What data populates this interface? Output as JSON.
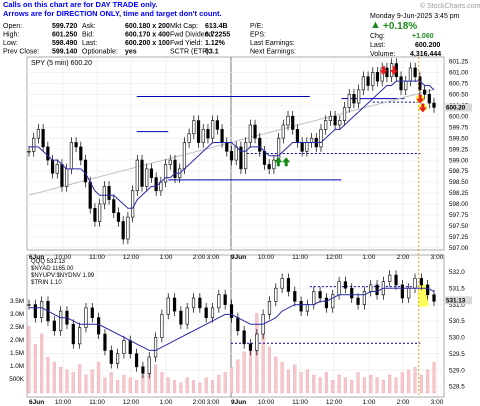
{
  "annotation": {
    "line1": "Calls on this chart are for DAY TRADE only.",
    "line2": "Arrows are for DIRECTION ONLY, time and target don't count."
  },
  "header": {
    "datetime": "Monday  9-Jun-2025  3:45 pm",
    "watermark": "© StockCharts.com",
    "pct_change": "+0.18%",
    "fields": [
      {
        "label": "Open:",
        "value": "599.720"
      },
      {
        "label": "Ask:",
        "value": "600.180 x 200"
      },
      {
        "label": "Mkt Cap:",
        "value": "613.4B"
      },
      {
        "label": "P/E:",
        "value": ""
      },
      {
        "label": "High:",
        "value": "601.250"
      },
      {
        "label": "Bid:",
        "value": "600.170 x 400"
      },
      {
        "label": "Fwd Dividend:",
        "value": "6.72255"
      },
      {
        "label": "EPS:",
        "value": ""
      },
      {
        "label": "Low:",
        "value": "598.490"
      },
      {
        "label": "Last:",
        "value": "600.200 x 100"
      },
      {
        "label": "Fwd Yield:",
        "value": "1.12%"
      },
      {
        "label": "Last Earnings:",
        "value": ""
      },
      {
        "label": "Prev Close:",
        "value": "599.140"
      },
      {
        "label": "Optionable:",
        "value": "yes"
      },
      {
        "label": "SCTR (ETF):",
        "value": "63.1"
      },
      {
        "label": "Next Earnings:",
        "value": ""
      }
    ],
    "right_labels": {
      "chg": "Chg:",
      "last": "Last:",
      "volume": "Volume:"
    },
    "right_values": {
      "chg": "+1.060",
      "last": "600.200",
      "volume": "4,316,444"
    }
  },
  "colors": {
    "accent": "#0000b0",
    "price_line": "#000000",
    "ma_line": "#2a2aa8",
    "ma_slow": "#bfbfbf",
    "up_arrow": "#138a13",
    "down_arrow": "#e81c1c",
    "highlight": "#ffff33",
    "dotted_vline": "#f0a030",
    "bg": "#ffffff"
  },
  "chart_data": [
    {
      "type": "line",
      "title": "SPY (5 min) 600.20",
      "x_ticks": [
        "6Jun",
        "10:00",
        "11:00",
        "12:00",
        "1:00",
        "2:00",
        "3:00",
        "9Jun",
        "10:00",
        "11:00",
        "12:00",
        "1:00",
        "2:00",
        "3:00"
      ],
      "y_ticks": [
        601.25,
        601.0,
        600.75,
        600.5,
        600.25,
        600.0,
        599.75,
        599.5,
        599.25,
        599.0,
        598.75,
        598.5,
        598.25,
        598.0,
        597.75,
        597.5,
        597.25,
        597.0
      ],
      "ylim": [
        596.95,
        601.35
      ],
      "last_price": 600.2,
      "series": [
        {
          "values": [
            599.2,
            599.5,
            599.7,
            599.3,
            599.0,
            598.7,
            598.9,
            598.4,
            598.8,
            599.4,
            599.3,
            599.0,
            598.5,
            597.9,
            597.6,
            598.0,
            598.4,
            598.1,
            597.8,
            597.6,
            597.2,
            597.7,
            598.3,
            599.0,
            598.4,
            598.8,
            598.6,
            598.3,
            598.5,
            598.9,
            599.0,
            598.6,
            598.8,
            599.4,
            599.6,
            599.9,
            599.4,
            599.7,
            599.5,
            599.9,
            599.7,
            599.4,
            599.2,
            599.0,
            599.3,
            598.8,
            599.4,
            599.8,
            599.5,
            599.2,
            598.9,
            598.8,
            599.0,
            599.5,
            599.8,
            600.0,
            599.7,
            599.4,
            599.2,
            599.4,
            599.5,
            599.3,
            599.7,
            599.9,
            600.0,
            599.8,
            599.9,
            600.2,
            600.5,
            600.3,
            600.6,
            600.9,
            600.7,
            601.0,
            600.8,
            601.1,
            600.9,
            601.2,
            600.9,
            600.6,
            600.8,
            601.1,
            600.9,
            600.6,
            600.5,
            600.3,
            600.2
          ]
        },
        {
          "values": [
            599.3,
            599.3,
            599.3,
            599.2,
            599.1,
            599.0,
            599.0,
            598.9,
            598.8,
            598.8,
            598.8,
            598.8,
            598.7,
            598.5,
            598.3,
            598.2,
            598.2,
            598.2,
            598.2,
            598.1,
            598.0,
            597.9,
            597.9,
            598.1,
            598.2,
            598.3,
            598.4,
            598.4,
            598.5,
            598.6,
            598.6,
            598.7,
            598.7,
            598.8,
            598.9,
            599.0,
            599.1,
            599.2,
            599.3,
            599.4,
            599.4,
            599.4,
            599.4,
            599.4,
            599.3,
            599.2,
            599.2,
            599.3,
            599.3,
            599.3,
            599.2,
            599.1,
            599.1,
            599.1,
            599.2,
            599.3,
            599.4,
            599.4,
            599.4,
            599.4,
            599.4,
            599.4,
            599.4,
            599.5,
            599.6,
            599.7,
            599.7,
            599.8,
            599.9,
            600.0,
            600.1,
            600.2,
            600.3,
            600.4,
            600.5,
            600.6,
            600.7,
            600.7,
            600.8,
            600.8,
            600.8,
            600.8,
            600.8,
            600.8,
            600.7,
            600.7,
            600.6
          ]
        }
      ],
      "horizontal_levels": [
        {
          "value": 600.45,
          "x_from": "1:00 6Jun",
          "x_to": "12:00 9Jun"
        },
        {
          "value": 599.65,
          "x_from": "1:00 6Jun",
          "x_to": "2:00 6Jun"
        },
        {
          "value": 598.55,
          "x_from": "2:00 6Jun",
          "x_to": "1:00 9Jun"
        },
        {
          "value": 600.4,
          "x_from": "1:00 9Jun",
          "x_to": "3:00 9Jun"
        },
        {
          "value": 599.15,
          "x_from": "10:00 9Jun",
          "x_to": "3:30 9Jun",
          "style": "dashed"
        },
        {
          "value": 600.32,
          "x_from": "2:00 9Jun",
          "x_to": "3:30 9Jun",
          "style": "dashed"
        }
      ],
      "markers": [
        {
          "kind": "up",
          "time": "11:00 9Jun",
          "value": 598.95
        },
        {
          "kind": "up",
          "time": "11:15 9Jun",
          "value": 598.95
        },
        {
          "kind": "down",
          "time": "2:20 9Jun",
          "value": 601.05
        },
        {
          "kind": "down",
          "time": "2:40 9Jun",
          "value": 601.05
        },
        {
          "kind": "down",
          "time": "3:30 9Jun",
          "value": 600.4
        },
        {
          "kind": "down",
          "time": "3:35 9Jun",
          "value": 600.2
        }
      ]
    },
    {
      "type": "line",
      "title_lines": [
        "QQQ 531.13",
        "$NYAD 1165.00",
        "$NYUPV:$NYDNV 1.99",
        "$TRIN 1.10"
      ],
      "x_ticks": [
        "6Jun",
        "10:00",
        "11:00",
        "12:00",
        "1:00",
        "2:00",
        "3:00",
        "9Jun",
        "10:00",
        "11:00",
        "12:00",
        "1:00",
        "2:00",
        "3:00"
      ],
      "y_ticks": [
        532.0,
        531.5,
        531.0,
        530.5,
        530.0,
        529.5,
        529.0,
        528.5
      ],
      "y_ticks_left": [
        "3.5M",
        "3.0M",
        "2.5M",
        "2.0M",
        "1.5M",
        "1.0M",
        "500K"
      ],
      "ylim": [
        528.3,
        532.3
      ],
      "last_price": 531.13,
      "series": [
        {
          "values": [
            531.0,
            530.6,
            531.1,
            530.5,
            530.2,
            530.8,
            530.4,
            529.8,
            530.3,
            530.9,
            530.6,
            530.1,
            529.6,
            529.2,
            529.5,
            529.9,
            529.5,
            529.1,
            528.9,
            529.4,
            530.0,
            530.7,
            531.2,
            530.8,
            530.4,
            530.9,
            531.2,
            530.9,
            530.6,
            530.9,
            531.3,
            531.0,
            530.6,
            530.2,
            529.8,
            529.6,
            530.1,
            530.7,
            531.1,
            531.5,
            531.8,
            531.4,
            531.1,
            530.8,
            531.0,
            531.4,
            531.2,
            530.9,
            531.3,
            531.7,
            531.5,
            531.2,
            531.0,
            531.4,
            531.6,
            531.3,
            531.7,
            531.9,
            531.6,
            531.2,
            531.5,
            531.8,
            531.6,
            531.3,
            531.1
          ]
        },
        {
          "values": [
            530.9,
            530.9,
            530.9,
            530.8,
            530.7,
            530.6,
            530.6,
            530.5,
            530.4,
            530.4,
            530.4,
            530.4,
            530.3,
            530.2,
            530.1,
            530.0,
            529.9,
            529.8,
            529.7,
            529.6,
            529.6,
            529.7,
            529.8,
            529.9,
            530.0,
            530.1,
            530.2,
            530.3,
            530.4,
            530.5,
            530.6,
            530.7,
            530.7,
            530.6,
            530.5,
            530.4,
            530.4,
            530.4,
            530.5,
            530.6,
            530.8,
            530.9,
            531.0,
            531.0,
            531.0,
            531.0,
            531.1,
            531.1,
            531.2,
            531.3,
            531.3,
            531.3,
            531.3,
            531.3,
            531.4,
            531.4,
            531.5,
            531.5,
            531.5,
            531.5,
            531.5,
            531.5,
            531.5,
            531.5,
            531.4
          ]
        }
      ],
      "horizontal_levels": [
        {
          "value": 531.55,
          "x_from": "12:00 9Jun",
          "x_to": "3:30 9Jun",
          "style": "dashed"
        },
        {
          "value": 529.82,
          "x_from": "9Jun",
          "x_to": "3:30 9Jun",
          "style": "dashed"
        }
      ],
      "volume_bars": [
        2.6,
        1.9,
        2.3,
        1.4,
        1.2,
        1.0,
        0.9,
        0.8,
        1.1,
        0.7,
        0.9,
        1.2,
        0.6,
        0.8,
        0.5,
        0.7,
        0.6,
        0.5,
        0.7,
        0.9,
        1.1,
        0.8,
        0.6,
        0.5,
        0.4,
        0.6,
        0.5,
        0.4,
        0.6,
        0.5,
        0.7,
        0.8,
        1.0,
        1.3,
        1.6,
        1.9,
        3.1,
        2.4,
        1.8,
        1.4,
        1.2,
        0.9,
        1.1,
        0.8,
        0.9,
        0.7,
        0.6,
        0.8,
        0.5,
        0.7,
        0.6,
        0.5,
        0.8,
        0.6,
        0.7,
        0.6,
        0.5,
        0.7,
        0.6,
        0.8,
        0.9,
        1.0,
        0.7,
        0.9,
        1.2
      ]
    }
  ]
}
